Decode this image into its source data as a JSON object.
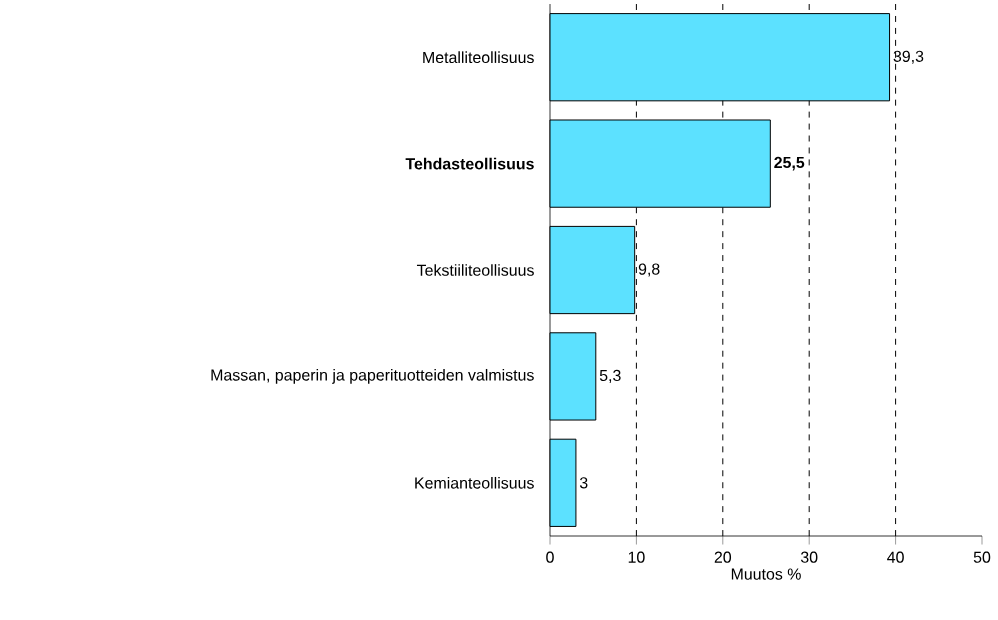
{
  "chart_data": {
    "type": "bar",
    "orientation": "horizontal",
    "categories": [
      "Metalliteollisuus",
      "**Tehdasteollisuus**",
      "Tekstiiliteollisuus",
      "Massan, paperin ja paperituotteiden valmistus",
      "Kemianteollisuus"
    ],
    "values": [
      39.3,
      25.5,
      9.8,
      5.3,
      3
    ],
    "value_labels": [
      "39,3",
      "**25,5**",
      "9,8",
      "5,3",
      "3"
    ],
    "color": "#5ce1ff",
    "xlabel": "Muutos %",
    "xlim": [
      0,
      50
    ],
    "xticks": [
      0,
      10,
      20,
      30,
      40,
      50
    ],
    "grid": "x"
  }
}
